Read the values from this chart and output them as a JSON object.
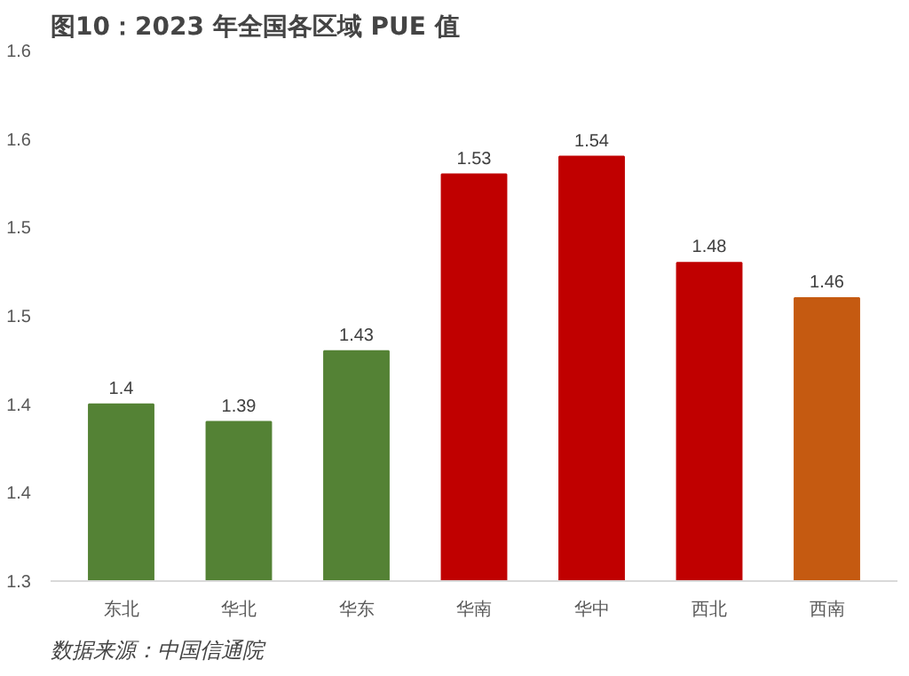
{
  "chart_data": {
    "type": "bar",
    "title": "图10：2023 年全国各区域 PUE 值",
    "categories": [
      "东北",
      "华北",
      "华东",
      "华南",
      "华中",
      "西北",
      "西南"
    ],
    "values": [
      1.4,
      1.39,
      1.43,
      1.53,
      1.54,
      1.48,
      1.46
    ],
    "colors": [
      "#548235",
      "#548235",
      "#548235",
      "#c00000",
      "#c00000",
      "#c00000",
      "#c55a11"
    ],
    "ylim": [
      1.3,
      1.6
    ],
    "yticks": [
      1.3,
      {
        "value": 1.35,
        "label": "1.4"
      },
      1.4,
      {
        "value": 1.45,
        "label": "1.5"
      },
      1.5,
      {
        "value": 1.55,
        "label": "1.6"
      },
      1.6
    ],
    "data_labels": true,
    "annotations": [
      "数据来源：中国信通院"
    ]
  }
}
